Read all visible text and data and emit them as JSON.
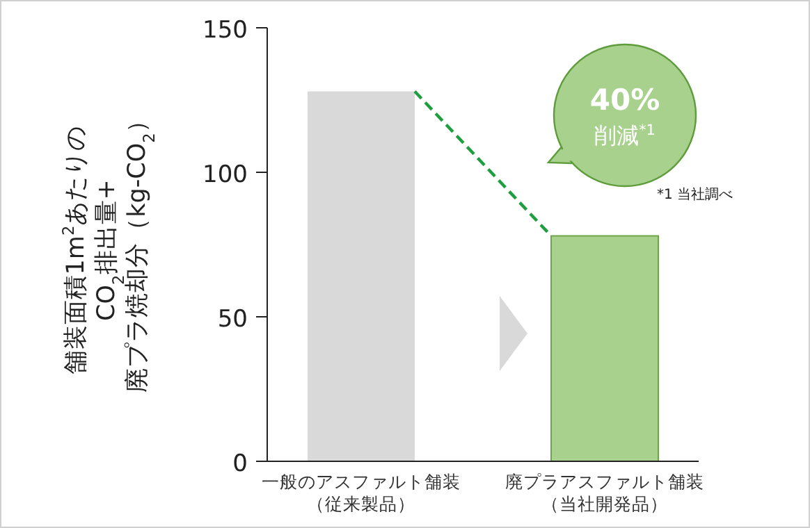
{
  "chart_data": {
    "type": "bar",
    "categories": [
      "一般のアスファルト舗装（従来製品）",
      "廃プラアスファルト舗装（当社開発品）"
    ],
    "values": [
      128,
      78
    ],
    "colors": [
      "#d9d9d9",
      "#a9d18e"
    ],
    "ylabel": "舗装面積1m$^{2}$あたりの\nCO$_{2}$排出量+\n廃プラ焼却分（kg-CO$_{2}$）",
    "ylim": [
      0,
      150
    ],
    "yticks": [
      0,
      50,
      100,
      150
    ],
    "annotations": [
      "40%\n削減$^{*1}$",
      "*1 当社調べ"
    ],
    "grid": false
  }
}
